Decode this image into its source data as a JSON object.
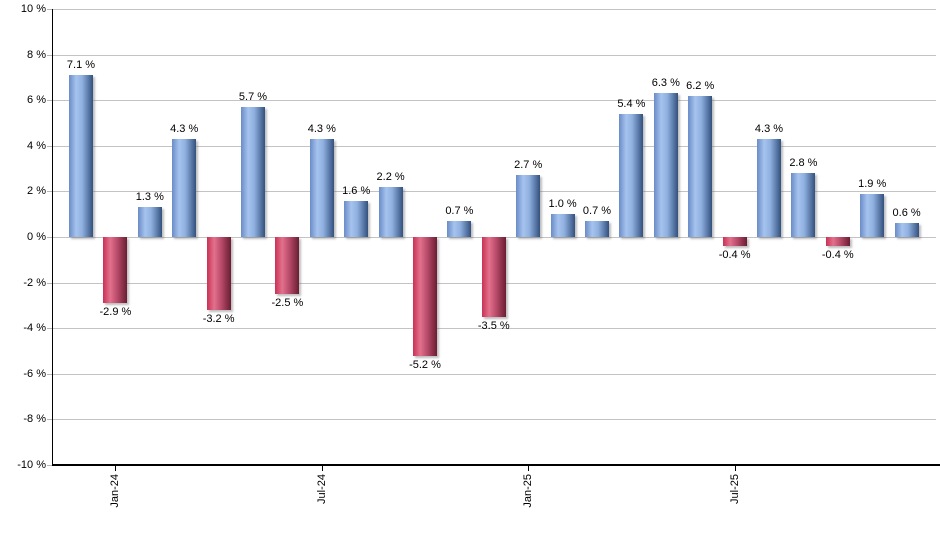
{
  "chart_data": {
    "type": "bar",
    "title": "",
    "xlabel": "",
    "ylabel": "",
    "unit": "%",
    "ylim": [
      -10,
      10
    ],
    "grid": true,
    "legend": "none",
    "y_ticks": [
      {
        "value": 10,
        "label": "10 %"
      },
      {
        "value": 8,
        "label": "8 %"
      },
      {
        "value": 6,
        "label": "6 %"
      },
      {
        "value": 4,
        "label": "4 %"
      },
      {
        "value": 2,
        "label": "2 %"
      },
      {
        "value": 0,
        "label": "0 %"
      },
      {
        "value": -2,
        "label": "-2 %"
      },
      {
        "value": -4,
        "label": "-4 %"
      },
      {
        "value": -6,
        "label": "-6 %"
      },
      {
        "value": -8,
        "label": "-8 %"
      },
      {
        "value": -10,
        "label": "-10 %"
      }
    ],
    "bars": [
      {
        "value": 7.1,
        "label": "7.1 %"
      },
      {
        "value": -2.9,
        "label": "-2.9 %"
      },
      {
        "value": 1.3,
        "label": "1.3 %"
      },
      {
        "value": 4.3,
        "label": "4.3 %"
      },
      {
        "value": -3.2,
        "label": "-3.2 %"
      },
      {
        "value": 5.7,
        "label": "5.7 %"
      },
      {
        "value": -2.5,
        "label": "-2.5 %"
      },
      {
        "value": 4.3,
        "label": "4.3 %"
      },
      {
        "value": 1.6,
        "label": "1.6 %"
      },
      {
        "value": 2.2,
        "label": "2.2 %"
      },
      {
        "value": -5.2,
        "label": "-5.2 %"
      },
      {
        "value": 0.7,
        "label": "0.7 %"
      },
      {
        "value": -3.5,
        "label": "-3.5 %"
      },
      {
        "value": 2.7,
        "label": "2.7 %"
      },
      {
        "value": 1.0,
        "label": "1.0 %"
      },
      {
        "value": 0.7,
        "label": "0.7 %"
      },
      {
        "value": 5.4,
        "label": "5.4 %"
      },
      {
        "value": 6.3,
        "label": "6.3 %"
      },
      {
        "value": 6.2,
        "label": "6.2 %"
      },
      {
        "value": -0.4,
        "label": "-0.4 %"
      },
      {
        "value": 4.3,
        "label": "4.3 %"
      },
      {
        "value": 2.8,
        "label": "2.8 %"
      },
      {
        "value": -0.4,
        "label": "-0.4 %"
      },
      {
        "value": 1.9,
        "label": "1.9 %"
      },
      {
        "value": 0.6,
        "label": "0.6 %"
      }
    ],
    "x_ticks": [
      {
        "bar_index": 1,
        "label": "Jan-24"
      },
      {
        "bar_index": 7,
        "label": "Jul-24"
      },
      {
        "bar_index": 13,
        "label": "Jan-25"
      },
      {
        "bar_index": 19,
        "label": "Jul-25"
      }
    ],
    "colors": {
      "positive_bar_gradient": [
        "#6a8cc7",
        "#a6c3ee",
        "#8fb0e0",
        "#33517f"
      ],
      "negative_bar_gradient": [
        "#c93155",
        "#e2718c",
        "#c05070",
        "#6b1d33"
      ],
      "gridline": "#c3c3c3",
      "axis": "#000000",
      "label_text": "#000000",
      "background": "#ffffff"
    }
  }
}
